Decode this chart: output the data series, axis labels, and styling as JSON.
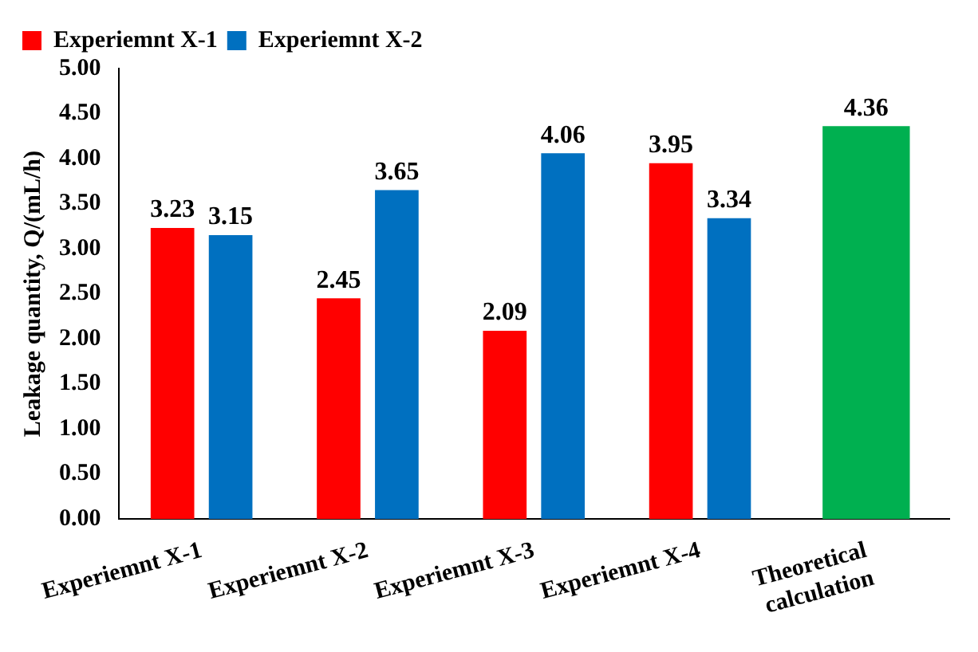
{
  "chart_data": {
    "type": "bar",
    "ylabel": "Leakage quantity, Q/(mL/h)",
    "categories": [
      "Experiemnt X-1",
      "Experiemnt X-2",
      "Experiemnt X-3",
      "Experiemnt X-4",
      "Theoretical\ncalculation"
    ],
    "series": [
      {
        "name": "Experiemnt X-1",
        "color": "#ff0000",
        "values": [
          3.23,
          2.45,
          2.09,
          3.95,
          null
        ]
      },
      {
        "name": "Experiemnt X-2",
        "color": "#0070c0",
        "values": [
          3.15,
          3.65,
          4.06,
          3.34,
          null
        ]
      },
      {
        "color": "#00b050",
        "values": [
          null,
          null,
          null,
          null,
          4.36
        ]
      }
    ],
    "ylim": [
      0,
      5
    ],
    "yticks": [
      {
        "value": 0,
        "label": "0.00"
      },
      {
        "value": 0.5,
        "label": "0.50"
      },
      {
        "value": 1,
        "label": "1.00"
      },
      {
        "value": 1.5,
        "label": "1.50"
      },
      {
        "value": 2,
        "label": "2.00"
      },
      {
        "value": 2.5,
        "label": "2.50"
      },
      {
        "value": 3,
        "label": "3.00"
      },
      {
        "value": 3.5,
        "label": "3.50"
      },
      {
        "value": 4,
        "label": "4.00"
      },
      {
        "value": 4.5,
        "label": "4.50"
      },
      {
        "value": 5,
        "label": "5.00"
      }
    ],
    "grid": false,
    "legend": "top left",
    "data_labels": true
  }
}
